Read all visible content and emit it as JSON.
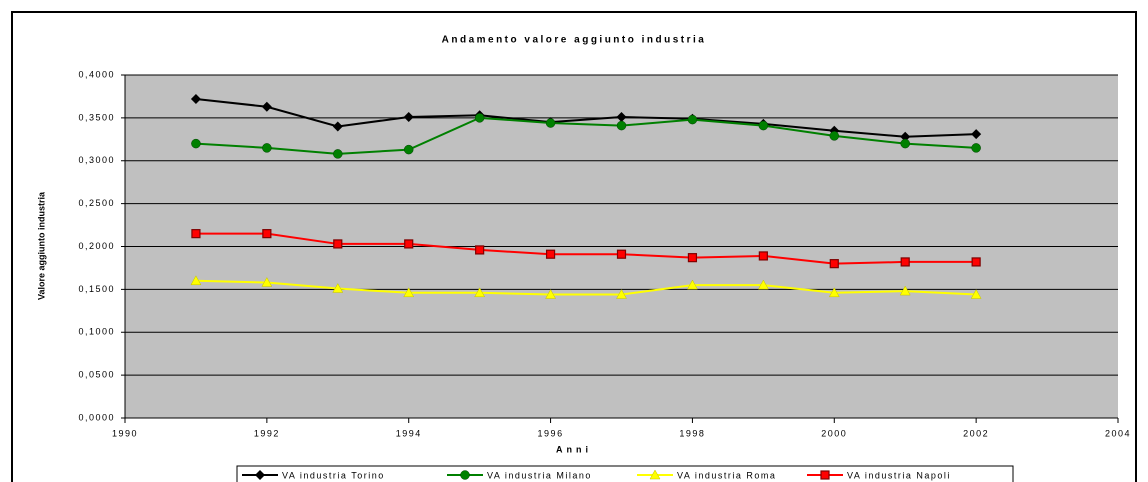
{
  "chart_data": {
    "type": "line",
    "title": "Andamento valore aggiunto industria",
    "x_label": "Anni",
    "y_label": "Valore aggiunto industria",
    "x": [
      1991,
      1992,
      1993,
      1994,
      1995,
      1996,
      1997,
      1998,
      1999,
      2000,
      2001,
      2002
    ],
    "series": [
      {
        "name": "VA industria Torino",
        "color": "#000000",
        "marker": "diamond",
        "values": [
          0.372,
          0.363,
          0.34,
          0.351,
          0.353,
          0.345,
          0.351,
          0.349,
          0.343,
          0.335,
          0.328,
          0.331
        ]
      },
      {
        "name": "VA industria Milano",
        "color": "#008000",
        "marker": "circle",
        "values": [
          0.32,
          0.315,
          0.308,
          0.313,
          0.35,
          0.344,
          0.341,
          0.348,
          0.341,
          0.329,
          0.32,
          0.315
        ]
      },
      {
        "name": "VA industria Roma",
        "color": "#ffff00",
        "marker": "triangle",
        "values": [
          0.16,
          0.158,
          0.151,
          0.146,
          0.146,
          0.144,
          0.144,
          0.155,
          0.155,
          0.146,
          0.148,
          0.144
        ]
      },
      {
        "name": "VA industria Napoli",
        "color": "#ff0000",
        "marker": "square",
        "values": [
          0.215,
          0.215,
          0.203,
          0.203,
          0.196,
          0.191,
          0.191,
          0.187,
          0.189,
          0.18,
          0.182,
          0.182
        ]
      }
    ],
    "xlim": [
      1990,
      2004
    ],
    "xticks": [
      1990,
      1992,
      1994,
      1996,
      1998,
      2000,
      2002,
      2004
    ],
    "ylim": [
      0,
      0.4
    ],
    "yticks": [
      {
        "value": 0,
        "label": "0,0000"
      },
      {
        "value": 0.05,
        "label": "0,0500"
      },
      {
        "value": 0.1,
        "label": "0,1000"
      },
      {
        "value": 0.15,
        "label": "0,1500"
      },
      {
        "value": 0.2,
        "label": "0,2000"
      },
      {
        "value": 0.25,
        "label": "0,2500"
      },
      {
        "value": 0.3,
        "label": "0,3000"
      },
      {
        "value": 0.35,
        "label": "0,3500"
      },
      {
        "value": 0.4,
        "label": "0,4000"
      }
    ],
    "grid": true,
    "legend": "bottom",
    "plot_background": "#c0c0c0"
  }
}
